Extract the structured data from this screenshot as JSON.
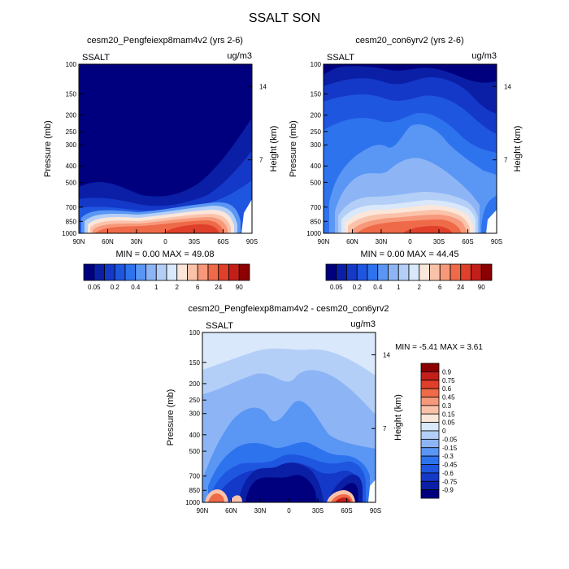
{
  "figure_title": "SSALT SON",
  "cb_colors": [
    "#00007f",
    "#0a1fa5",
    "#1438c8",
    "#1f56e0",
    "#2e73ee",
    "#5a96f4",
    "#8db5f6",
    "#b4cff7",
    "#d9e8fb",
    "#fbe6da",
    "#fbc2aa",
    "#f7987a",
    "#ee6a48",
    "#e0402a",
    "#c31e1a",
    "#8b0000"
  ],
  "chart_data": [
    {
      "type": "heatmap",
      "title": "cesm20_Pengfeiexp8mam4v2 (yrs 2-6)",
      "field_label": "SSALT",
      "units": "ug/m3",
      "ylabel": "Pressure (mb)",
      "y2label": "Height (km)",
      "x_ticks": [
        "90N",
        "60N",
        "30N",
        "0",
        "30S",
        "60S",
        "90S"
      ],
      "y_ticks": [
        "100",
        "150",
        "200",
        "250",
        "300",
        "400",
        "500",
        "700",
        "850",
        "1000"
      ],
      "y2_ticks": [
        "14",
        "7"
      ],
      "min_max": "MIN =   0.00   MAX =  49.08",
      "colorbar": {
        "orientation": "horizontal",
        "labels": [
          "0.05",
          "0.2",
          "0.4",
          "1",
          "2",
          "6",
          "24",
          "90"
        ]
      }
    },
    {
      "type": "heatmap",
      "title": "cesm20_con6yrv2 (yrs 2-6)",
      "field_label": "SSALT",
      "units": "ug/m3",
      "ylabel": "Pressure (mb)",
      "y2label": "Height (km)",
      "x_ticks": [
        "90N",
        "60N",
        "30N",
        "0",
        "30S",
        "60S",
        "90S"
      ],
      "y_ticks": [
        "100",
        "150",
        "200",
        "250",
        "300",
        "400",
        "500",
        "700",
        "850",
        "1000"
      ],
      "y2_ticks": [
        "14",
        "7"
      ],
      "min_max": "MIN =   0.00   MAX =  44.45",
      "colorbar": {
        "orientation": "horizontal",
        "labels": [
          "0.05",
          "0.2",
          "0.4",
          "1",
          "2",
          "6",
          "24",
          "90"
        ]
      }
    },
    {
      "type": "heatmap",
      "title": "cesm20_Pengfeiexp8mam4v2 - cesm20_con6yrv2",
      "field_label": "SSALT",
      "units": "ug/m3",
      "ylabel": "Pressure (mb)",
      "y2label": "Height (km)",
      "x_ticks": [
        "90N",
        "60N",
        "30N",
        "0",
        "30S",
        "60S",
        "90S"
      ],
      "y_ticks": [
        "100",
        "150",
        "200",
        "250",
        "300",
        "400",
        "500",
        "700",
        "850",
        "1000"
      ],
      "y2_ticks": [
        "14",
        "7"
      ],
      "min_max": "MIN = -5.41  MAX =   3.61",
      "colorbar": {
        "orientation": "vertical",
        "labels": [
          "0.9",
          "0.75",
          "0.6",
          "0.45",
          "0.3",
          "0.15",
          "0.05",
          "0",
          "-0.05",
          "-0.15",
          "-0.3",
          "-0.45",
          "-0.6",
          "-0.75",
          "-0.9"
        ]
      }
    }
  ]
}
